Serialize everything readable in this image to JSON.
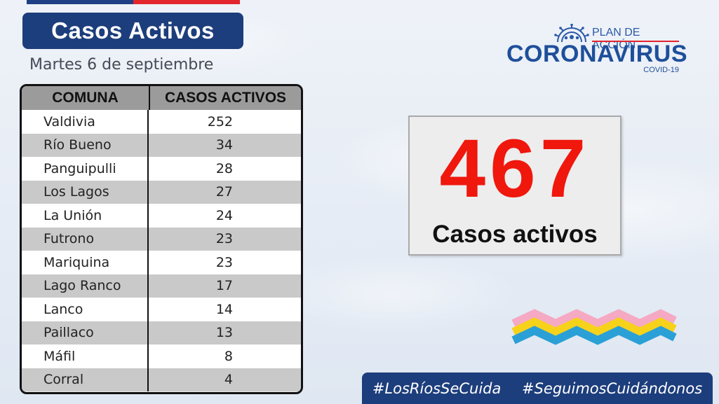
{
  "header": {
    "title": "Casos Activos",
    "date": "Martes 6 de septiembre"
  },
  "logo": {
    "plan": "PLAN DE ACCIÓN",
    "name": "CORONAVIRUS",
    "sub": "COVID-19"
  },
  "table": {
    "headers": [
      "COMUNA",
      "CASOS ACTIVOS"
    ],
    "rows": [
      {
        "comuna": "Valdivia",
        "casos": "252"
      },
      {
        "comuna": "Río Bueno",
        "casos": "34"
      },
      {
        "comuna": "Panguipulli",
        "casos": "28"
      },
      {
        "comuna": "Los Lagos",
        "casos": "27"
      },
      {
        "comuna": "La Unión",
        "casos": "24"
      },
      {
        "comuna": "Futrono",
        "casos": "23"
      },
      {
        "comuna": "Mariquina",
        "casos": "23"
      },
      {
        "comuna": "Lago Ranco",
        "casos": "17"
      },
      {
        "comuna": "Lanco",
        "casos": "14"
      },
      {
        "comuna": "Paillaco",
        "casos": "13"
      },
      {
        "comuna": "Máfil",
        "casos": "8"
      },
      {
        "comuna": "Corral",
        "casos": "4"
      }
    ]
  },
  "summary": {
    "total": "467",
    "label": "Casos activos"
  },
  "hashtags": [
    "#LosRíosSeCuida",
    "#SeguimosCuidándonos"
  ],
  "colors": {
    "navy": "#1d3e7c",
    "highlight_red": "#f0170d",
    "flag_blue": "#1e3f86",
    "flag_red": "#e3262e",
    "wave_pink": "#f5a9c2",
    "wave_yellow": "#f6d21b",
    "wave_blue": "#2ba0d6"
  }
}
